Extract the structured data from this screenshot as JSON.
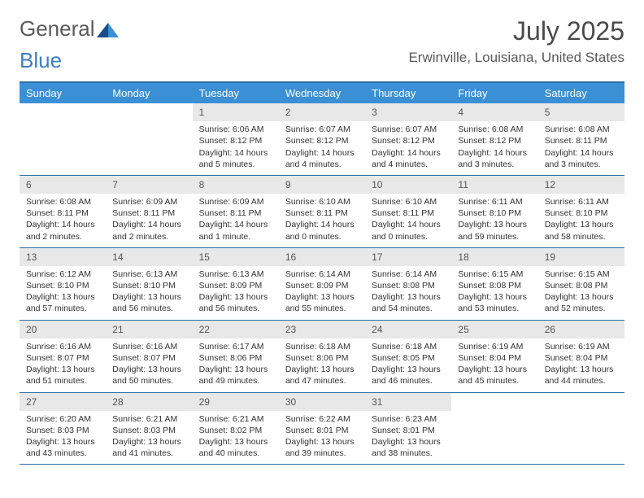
{
  "logo": {
    "text1": "General",
    "text2": "Blue"
  },
  "title": "July 2025",
  "location": "Erwinville, Louisiana, United States",
  "brand_blue": "#3b8fd4",
  "border_blue": "#2f6fa7",
  "daynum_bg": "#e8e8e8",
  "day_names": [
    "Sunday",
    "Monday",
    "Tuesday",
    "Wednesday",
    "Thursday",
    "Friday",
    "Saturday"
  ],
  "weeks": [
    [
      {
        "empty": true
      },
      {
        "empty": true
      },
      {
        "n": "1",
        "sr": "6:06 AM",
        "ss": "8:12 PM",
        "dl": "14 hours and 5 minutes."
      },
      {
        "n": "2",
        "sr": "6:07 AM",
        "ss": "8:12 PM",
        "dl": "14 hours and 4 minutes."
      },
      {
        "n": "3",
        "sr": "6:07 AM",
        "ss": "8:12 PM",
        "dl": "14 hours and 4 minutes."
      },
      {
        "n": "4",
        "sr": "6:08 AM",
        "ss": "8:12 PM",
        "dl": "14 hours and 3 minutes."
      },
      {
        "n": "5",
        "sr": "6:08 AM",
        "ss": "8:11 PM",
        "dl": "14 hours and 3 minutes."
      }
    ],
    [
      {
        "n": "6",
        "sr": "6:08 AM",
        "ss": "8:11 PM",
        "dl": "14 hours and 2 minutes."
      },
      {
        "n": "7",
        "sr": "6:09 AM",
        "ss": "8:11 PM",
        "dl": "14 hours and 2 minutes."
      },
      {
        "n": "8",
        "sr": "6:09 AM",
        "ss": "8:11 PM",
        "dl": "14 hours and 1 minute."
      },
      {
        "n": "9",
        "sr": "6:10 AM",
        "ss": "8:11 PM",
        "dl": "14 hours and 0 minutes."
      },
      {
        "n": "10",
        "sr": "6:10 AM",
        "ss": "8:11 PM",
        "dl": "14 hours and 0 minutes."
      },
      {
        "n": "11",
        "sr": "6:11 AM",
        "ss": "8:10 PM",
        "dl": "13 hours and 59 minutes."
      },
      {
        "n": "12",
        "sr": "6:11 AM",
        "ss": "8:10 PM",
        "dl": "13 hours and 58 minutes."
      }
    ],
    [
      {
        "n": "13",
        "sr": "6:12 AM",
        "ss": "8:10 PM",
        "dl": "13 hours and 57 minutes."
      },
      {
        "n": "14",
        "sr": "6:13 AM",
        "ss": "8:10 PM",
        "dl": "13 hours and 56 minutes."
      },
      {
        "n": "15",
        "sr": "6:13 AM",
        "ss": "8:09 PM",
        "dl": "13 hours and 56 minutes."
      },
      {
        "n": "16",
        "sr": "6:14 AM",
        "ss": "8:09 PM",
        "dl": "13 hours and 55 minutes."
      },
      {
        "n": "17",
        "sr": "6:14 AM",
        "ss": "8:08 PM",
        "dl": "13 hours and 54 minutes."
      },
      {
        "n": "18",
        "sr": "6:15 AM",
        "ss": "8:08 PM",
        "dl": "13 hours and 53 minutes."
      },
      {
        "n": "19",
        "sr": "6:15 AM",
        "ss": "8:08 PM",
        "dl": "13 hours and 52 minutes."
      }
    ],
    [
      {
        "n": "20",
        "sr": "6:16 AM",
        "ss": "8:07 PM",
        "dl": "13 hours and 51 minutes."
      },
      {
        "n": "21",
        "sr": "6:16 AM",
        "ss": "8:07 PM",
        "dl": "13 hours and 50 minutes."
      },
      {
        "n": "22",
        "sr": "6:17 AM",
        "ss": "8:06 PM",
        "dl": "13 hours and 49 minutes."
      },
      {
        "n": "23",
        "sr": "6:18 AM",
        "ss": "8:06 PM",
        "dl": "13 hours and 47 minutes."
      },
      {
        "n": "24",
        "sr": "6:18 AM",
        "ss": "8:05 PM",
        "dl": "13 hours and 46 minutes."
      },
      {
        "n": "25",
        "sr": "6:19 AM",
        "ss": "8:04 PM",
        "dl": "13 hours and 45 minutes."
      },
      {
        "n": "26",
        "sr": "6:19 AM",
        "ss": "8:04 PM",
        "dl": "13 hours and 44 minutes."
      }
    ],
    [
      {
        "n": "27",
        "sr": "6:20 AM",
        "ss": "8:03 PM",
        "dl": "13 hours and 43 minutes."
      },
      {
        "n": "28",
        "sr": "6:21 AM",
        "ss": "8:03 PM",
        "dl": "13 hours and 41 minutes."
      },
      {
        "n": "29",
        "sr": "6:21 AM",
        "ss": "8:02 PM",
        "dl": "13 hours and 40 minutes."
      },
      {
        "n": "30",
        "sr": "6:22 AM",
        "ss": "8:01 PM",
        "dl": "13 hours and 39 minutes."
      },
      {
        "n": "31",
        "sr": "6:23 AM",
        "ss": "8:01 PM",
        "dl": "13 hours and 38 minutes."
      },
      {
        "empty": true
      },
      {
        "empty": true
      }
    ]
  ],
  "labels": {
    "sunrise": "Sunrise:",
    "sunset": "Sunset:",
    "daylight": "Daylight:"
  }
}
